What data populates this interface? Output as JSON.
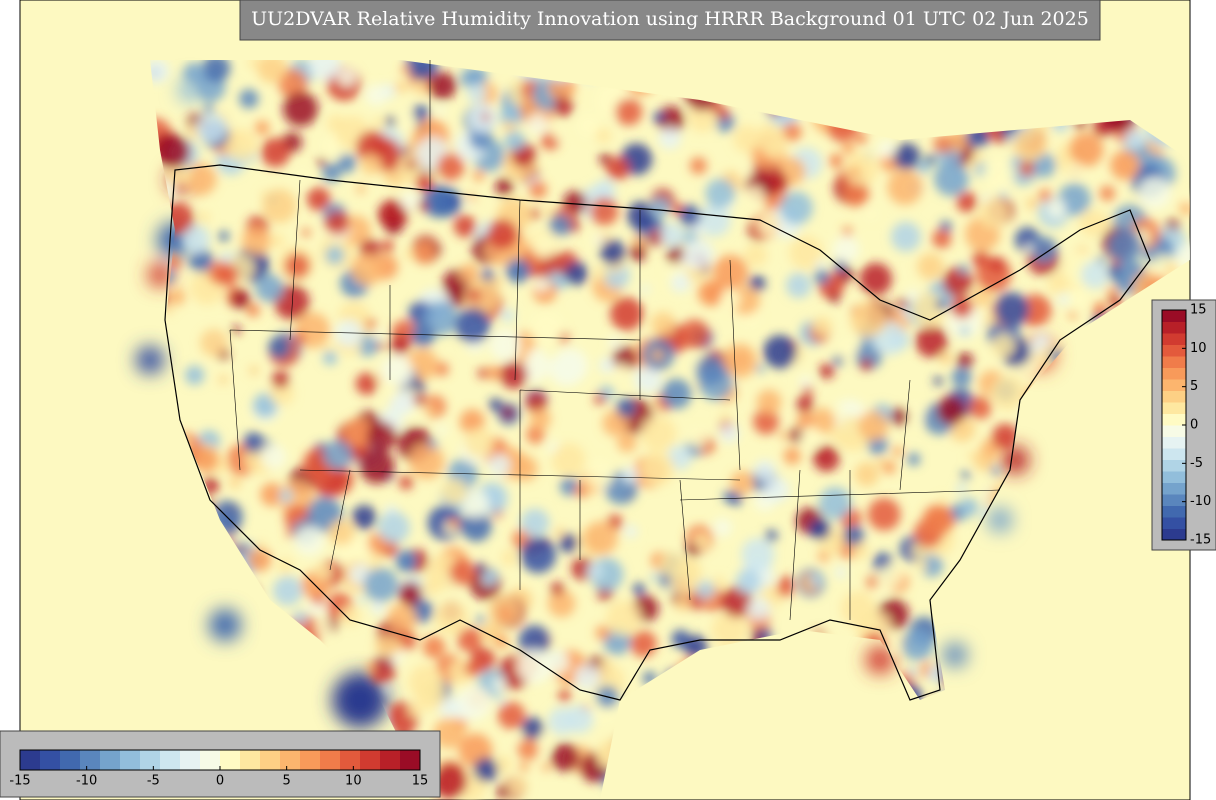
{
  "title": "UU2DVAR Relative Humidity Innovation using HRRR Background 01 UTC 02 Jun 2025",
  "colors": [
    "#2c3b8f",
    "#3450a3",
    "#4169af",
    "#5a86bd",
    "#75a3cc",
    "#92bedb",
    "#b0d4e6",
    "#cde6ef",
    "#e6f3f2",
    "#f7fbe6",
    "#fffbc4",
    "#fee8a0",
    "#fdd085",
    "#fcb56e",
    "#f89a5a",
    "#f07c4a",
    "#e35a3c",
    "#d13b30",
    "#b82028",
    "#9a0c26"
  ],
  "colorbar_right": {
    "ticks": [
      15,
      10,
      5,
      0,
      -5,
      -10,
      -15
    ]
  },
  "colorbar_bottom": {
    "ticks": [
      -15,
      -10,
      -5,
      0,
      5,
      10,
      15
    ]
  }
}
